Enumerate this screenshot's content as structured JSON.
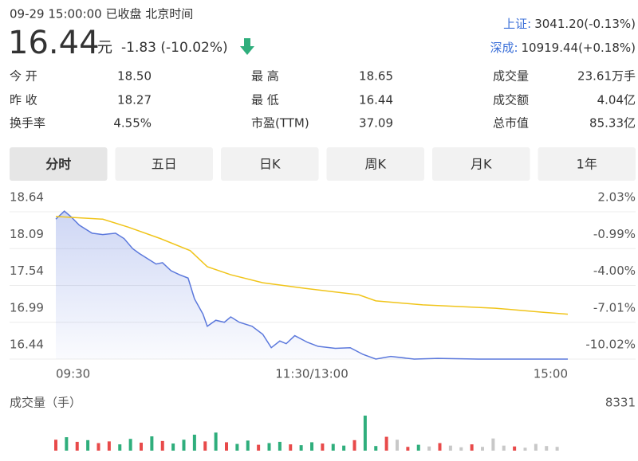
{
  "header": {
    "status": "09-29 15:00:00 已收盘 北京时间",
    "price": "16.44",
    "unit": "元",
    "change": "-1.83 (-10.02%)",
    "price_color": "#2fae7c",
    "indices": [
      {
        "name": "上证:",
        "value": "3041.20(-0.13%)"
      },
      {
        "name": "深成:",
        "value": "10919.44(+0.18%)"
      }
    ]
  },
  "stats": [
    [
      {
        "label": "今 开",
        "value": "18.50",
        "color": "#e84a4a"
      },
      {
        "label": "最 高",
        "value": "18.65",
        "color": "#e84a4a"
      },
      {
        "label": "成交量",
        "value": "23.61万手",
        "color": "#333333"
      }
    ],
    [
      {
        "label": "昨 收",
        "value": "18.27",
        "color": "#333333"
      },
      {
        "label": "最 低",
        "value": "16.44",
        "color": "#2fae7c"
      },
      {
        "label": "成交额",
        "value": "4.04亿",
        "color": "#333333"
      }
    ],
    [
      {
        "label": "换手率",
        "value": "4.55%",
        "color": "#333333"
      },
      {
        "label": "市盈(TTM)",
        "value": "37.09",
        "color": "#333333"
      },
      {
        "label": "总市值",
        "value": "85.33亿",
        "color": "#333333"
      }
    ]
  ],
  "tabs": [
    "分时",
    "五日",
    "日K",
    "周K",
    "月K",
    "1年"
  ],
  "chart_data": [
    {
      "type": "line",
      "xlim": [
        0,
        240
      ],
      "xticks": [
        {
          "value": 0,
          "label": "09:30"
        },
        {
          "value": 120,
          "label": "11:30/13:00"
        },
        {
          "value": 240,
          "label": "15:00"
        }
      ],
      "ylim": [
        16.44,
        18.64
      ],
      "yticks": [
        18.64,
        18.09,
        17.54,
        16.99,
        16.44
      ],
      "y2lim": [
        -10.02,
        2.03
      ],
      "y2ticks": [
        {
          "value": 2.03,
          "label": "2.03%"
        },
        {
          "value": -0.99,
          "label": "-0.99%"
        },
        {
          "value": -4.0,
          "label": "-4.00%"
        },
        {
          "value": -7.01,
          "label": "-7.01%"
        },
        {
          "value": -10.02,
          "label": "-10.02%"
        }
      ],
      "grid": true,
      "series": [
        {
          "color": "#5b78dc",
          "area": true,
          "x": [
            0,
            4,
            7,
            11,
            17,
            22,
            28,
            32,
            36,
            39,
            43,
            47,
            50,
            54,
            58,
            62,
            65,
            69,
            71,
            75,
            79,
            82,
            86,
            92,
            97,
            101,
            105,
            108,
            112,
            118,
            123,
            131,
            138,
            144,
            150,
            157,
            168,
            179,
            198,
            217,
            240
          ],
          "values": [
            18.53,
            18.65,
            18.57,
            18.44,
            18.32,
            18.3,
            18.32,
            18.24,
            18.09,
            18.02,
            17.94,
            17.86,
            17.88,
            17.76,
            17.7,
            17.65,
            17.34,
            17.11,
            16.93,
            17.02,
            16.99,
            17.07,
            16.99,
            16.93,
            16.81,
            16.61,
            16.71,
            16.67,
            16.79,
            16.69,
            16.63,
            16.6,
            16.61,
            16.51,
            16.44,
            16.48,
            16.44,
            16.45,
            16.44,
            16.44,
            16.44
          ]
        },
        {
          "color": "#f0c419",
          "area": false,
          "x": [
            0,
            22,
            34,
            49,
            63,
            71,
            82,
            97,
            116,
            142,
            150,
            172,
            206,
            228,
            240
          ],
          "values": [
            18.57,
            18.53,
            18.41,
            18.24,
            18.06,
            17.82,
            17.7,
            17.58,
            17.5,
            17.4,
            17.31,
            17.25,
            17.2,
            17.14,
            17.11
          ]
        }
      ]
    },
    {
      "type": "bar",
      "title": "成交量（手）",
      "xlim": [
        0,
        240
      ],
      "ylim": [
        0,
        8331
      ],
      "yticks": [
        8331
      ],
      "x": [
        0,
        5,
        10,
        15,
        20,
        25,
        30,
        35,
        40,
        45,
        50,
        55,
        60,
        65,
        70,
        75,
        80,
        85,
        90,
        95,
        100,
        105,
        110,
        115,
        120,
        125,
        130,
        135,
        140,
        145,
        150,
        155,
        160,
        165,
        170,
        175,
        180,
        185,
        190,
        195,
        200,
        205,
        210,
        215,
        220,
        225,
        230,
        235
      ],
      "values": [
        2600,
        3200,
        2100,
        2500,
        1800,
        2200,
        1500,
        2800,
        1900,
        3400,
        2300,
        1700,
        2600,
        3800,
        2200,
        4300,
        2000,
        1600,
        2400,
        1400,
        1800,
        2100,
        1500,
        1300,
        2000,
        1700,
        1600,
        1200,
        2500,
        8331,
        1100,
        3300,
        2600,
        900,
        1400,
        1000,
        1800,
        1200,
        800,
        1500,
        900,
        2900,
        1200,
        1000,
        700,
        1600,
        1100,
        900
      ],
      "colors": [
        "#e84a4a",
        "#2fae7c",
        "#e84a4a",
        "#2fae7c",
        "#e84a4a",
        "#e84a4a",
        "#2fae7c",
        "#2fae7c",
        "#e84a4a",
        "#2fae7c",
        "#e84a4a",
        "#2fae7c",
        "#2fae7c",
        "#2fae7c",
        "#e84a4a",
        "#2fae7c",
        "#e84a4a",
        "#2fae7c",
        "#2fae7c",
        "#e84a4a",
        "#2fae7c",
        "#2fae7c",
        "#e84a4a",
        "#2fae7c",
        "#2fae7c",
        "#e84a4a",
        "#2fae7c",
        "#2fae7c",
        "#e84a4a",
        "#2fae7c",
        "#2fae7c",
        "#e84a4a",
        "#c8c8c8",
        "#e84a4a",
        "#2fae7c",
        "#c8c8c8",
        "#e84a4a",
        "#c8c8c8",
        "#c8c8c8",
        "#e84a4a",
        "#c8c8c8",
        "#c8c8c8",
        "#c8c8c8",
        "#e84a4a",
        "#c8c8c8",
        "#c8c8c8",
        "#c8c8c8",
        "#c8c8c8"
      ]
    }
  ]
}
